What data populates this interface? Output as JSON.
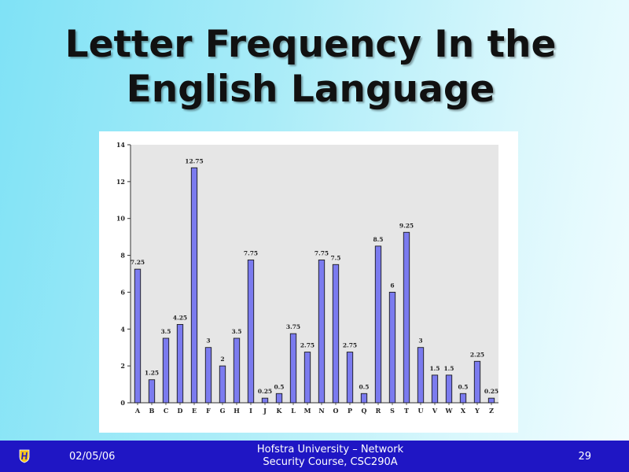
{
  "slide": {
    "title_line1": "Letter Frequency In the",
    "title_line2": "English Language"
  },
  "footer": {
    "date": "02/05/06",
    "course_line1": "Hofstra University – Network",
    "course_line2": "Security Course, CSC290A",
    "page": "29",
    "logo_icon": "hofstra-logo-icon",
    "bar_color": "#1f16c4"
  },
  "chart_data": {
    "type": "bar",
    "title": "",
    "xlabel": "",
    "ylabel": "",
    "categories": [
      "A",
      "B",
      "C",
      "D",
      "E",
      "F",
      "G",
      "H",
      "I",
      "J",
      "K",
      "L",
      "M",
      "N",
      "O",
      "P",
      "Q",
      "R",
      "S",
      "T",
      "U",
      "V",
      "W",
      "X",
      "Y",
      "Z"
    ],
    "values": [
      7.25,
      1.25,
      3.5,
      4.25,
      12.75,
      3,
      2,
      3.5,
      7.75,
      0.25,
      0.5,
      3.75,
      2.75,
      7.75,
      7.5,
      2.75,
      0.5,
      8.5,
      6,
      9.25,
      3,
      1.5,
      1.5,
      0.5,
      2.25,
      0.25
    ],
    "data_labels": [
      "7.25",
      "1.25",
      "3.5",
      "4.25",
      "12.75",
      "3",
      "2",
      "3.5",
      "7.75",
      "0.25",
      "0.5",
      "3.75",
      "2.75",
      "7.75",
      "7.5",
      "2.75",
      "0.5",
      "8.5",
      "6",
      "9.25",
      "3",
      "1.5",
      "1.5",
      "0.5",
      "2.25",
      "0.25"
    ],
    "ylim": [
      0,
      14
    ],
    "yticks": [
      0,
      2,
      4,
      6,
      8,
      10,
      12,
      14
    ],
    "grid": false,
    "legend": "none",
    "bar_color": "#7b7bef",
    "plot_background": "#e6e6e6"
  }
}
